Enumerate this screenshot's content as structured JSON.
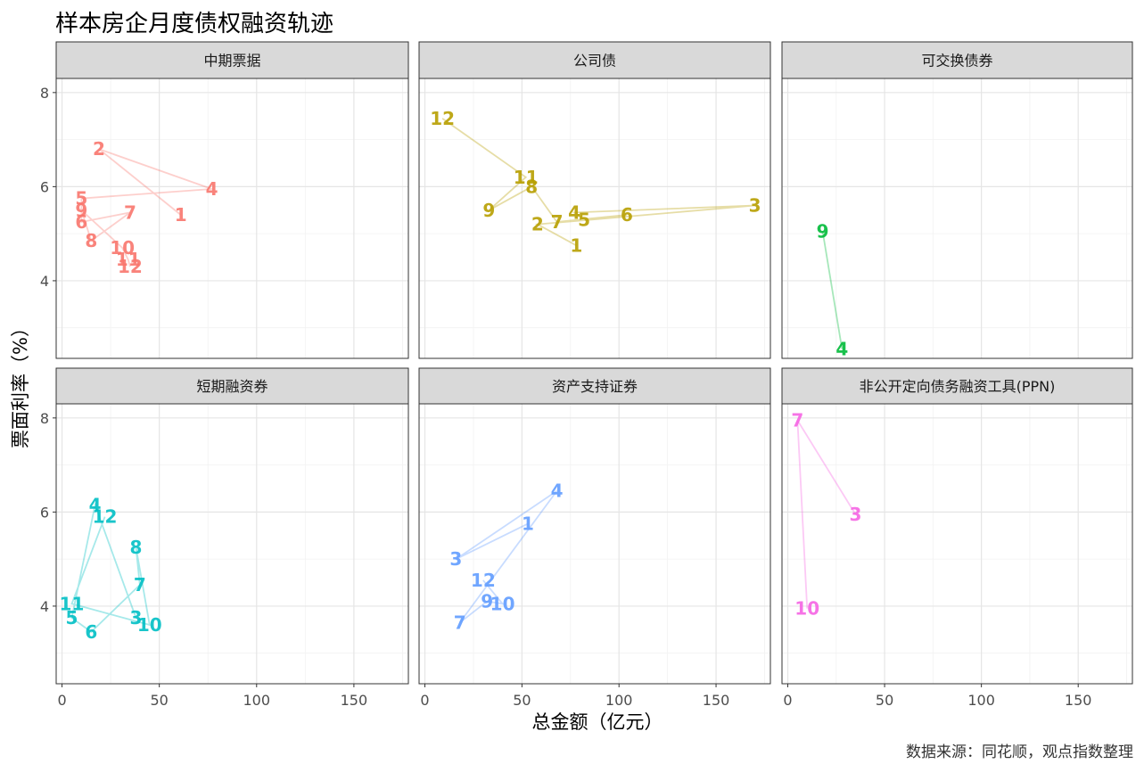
{
  "title": "样本房企月度债权融资轨迹",
  "source": "数据来源：同花顺，观点指数整理",
  "chart_data": {
    "type": "line",
    "title": "样本房企月度债权融资轨迹",
    "xlabel": "总金额（亿元）",
    "ylabel": "票面利率（%）",
    "xlim": [
      -3,
      178
    ],
    "ylim": [
      2.35,
      8.3
    ],
    "xticks": [
      0,
      50,
      100,
      150
    ],
    "yticks": [
      4,
      6,
      8
    ],
    "grid": true,
    "facets": [
      {
        "name": "中期票据",
        "color": "#F8766D",
        "points": [
          {
            "label": "1",
            "x": 61,
            "y": 5.4
          },
          {
            "label": "2",
            "x": 19,
            "y": 6.8
          },
          {
            "label": "4",
            "x": 77,
            "y": 5.95
          },
          {
            "label": "5",
            "x": 10,
            "y": 5.75
          },
          {
            "label": "9",
            "x": 10,
            "y": 5.5
          },
          {
            "label": "6",
            "x": 10,
            "y": 5.25
          },
          {
            "label": "7",
            "x": 35,
            "y": 5.45
          },
          {
            "label": "8",
            "x": 15,
            "y": 4.85
          },
          {
            "label": "10",
            "x": 31,
            "y": 4.7
          },
          {
            "label": "11",
            "x": 34,
            "y": 4.45
          },
          {
            "label": "12",
            "x": 35,
            "y": 4.3
          }
        ]
      },
      {
        "name": "公司债",
        "color": "#B79F00",
        "points": [
          {
            "label": "1",
            "x": 78,
            "y": 4.75
          },
          {
            "label": "2",
            "x": 58,
            "y": 5.2
          },
          {
            "label": "3",
            "x": 170,
            "y": 5.6
          },
          {
            "label": "4",
            "x": 77,
            "y": 5.45
          },
          {
            "label": "5",
            "x": 82,
            "y": 5.3
          },
          {
            "label": "6",
            "x": 104,
            "y": 5.4
          },
          {
            "label": "7",
            "x": 68,
            "y": 5.25
          },
          {
            "label": "8",
            "x": 55,
            "y": 6.0
          },
          {
            "label": "9",
            "x": 33,
            "y": 5.5
          },
          {
            "label": "11",
            "x": 52,
            "y": 6.2
          },
          {
            "label": "12",
            "x": 9,
            "y": 7.45
          }
        ]
      },
      {
        "name": "可交换债券",
        "color": "#00BA38",
        "points": [
          {
            "label": "4",
            "x": 28,
            "y": 2.55
          },
          {
            "label": "9",
            "x": 18,
            "y": 5.05
          }
        ]
      },
      {
        "name": "短期融资券",
        "color": "#00BFC4",
        "points": [
          {
            "label": "3",
            "x": 38,
            "y": 3.75
          },
          {
            "label": "4",
            "x": 17,
            "y": 6.15
          },
          {
            "label": "5",
            "x": 5,
            "y": 3.75
          },
          {
            "label": "6",
            "x": 15,
            "y": 3.45
          },
          {
            "label": "7",
            "x": 40,
            "y": 4.45
          },
          {
            "label": "8",
            "x": 38,
            "y": 5.25
          },
          {
            "label": "10",
            "x": 45,
            "y": 3.6
          },
          {
            "label": "11",
            "x": 5,
            "y": 4.05
          },
          {
            "label": "12",
            "x": 22,
            "y": 5.9
          }
        ]
      },
      {
        "name": "资产支持证券",
        "color": "#619CFF",
        "points": [
          {
            "label": "1",
            "x": 53,
            "y": 5.75
          },
          {
            "label": "3",
            "x": 16,
            "y": 5.0
          },
          {
            "label": "4",
            "x": 68,
            "y": 6.45
          },
          {
            "label": "7",
            "x": 18,
            "y": 3.65
          },
          {
            "label": "9",
            "x": 32,
            "y": 4.1
          },
          {
            "label": "10",
            "x": 40,
            "y": 4.05
          },
          {
            "label": "12",
            "x": 30,
            "y": 4.55
          }
        ]
      },
      {
        "name": "非公开定向债务融资工具(PPN)",
        "color": "#F564E3",
        "points": [
          {
            "label": "3",
            "x": 35,
            "y": 5.95
          },
          {
            "label": "7",
            "x": 5,
            "y": 7.95
          },
          {
            "label": "10",
            "x": 10,
            "y": 3.95
          }
        ]
      }
    ]
  }
}
